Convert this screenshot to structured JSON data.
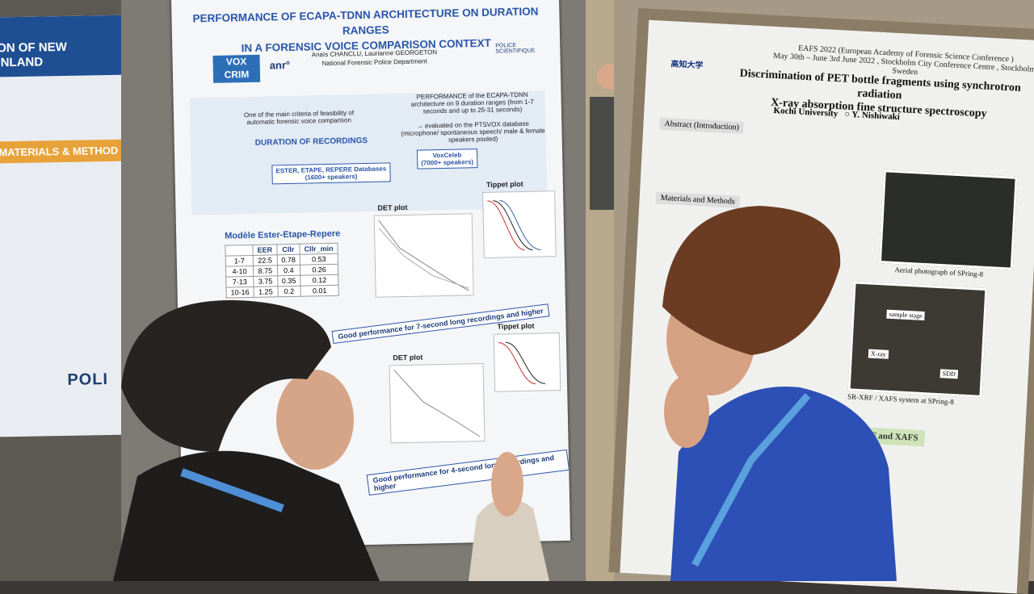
{
  "left_poster": {
    "title_lines": [
      "ON OF NEW",
      "INLAND"
    ],
    "section": "MATERIALS & METHOD",
    "logo": "POLI"
  },
  "center_poster": {
    "title_lines": [
      "PERFORMANCE OF ECAPA-TDNN ARCHITECTURE ON DURATION RANGES",
      "IN A FORENSIC VOICE COMPARISON CONTEXT"
    ],
    "logos": [
      "VOX",
      "CRIM",
      "anr°",
      "POLICE SCIENTIFIQUE"
    ],
    "authors": "Anaïs CHANCLU, Laurianne GEORGETON",
    "affiliation": "National Forensic Police Department",
    "criteria": "One of the main criteria of feasibility of automatic forensic voice comparison",
    "duration": "DURATION OF RECORDINGS",
    "ecapa_note": "PERFORMANCE of the ECAPA-TDNN architecture on 9 duration ranges (from 1-7 seconds and up to 25-31 seconds)",
    "ptsvox_note": "→ evaluated on the PTSVOX database (microphone/ spontaneous speech/ male & female speakers pooled)",
    "databases": [
      {
        "name": "ESTER, ETAPE, REPERE Databases",
        "speakers": "(1600+ speakers)"
      },
      {
        "name": "VoxCeleb",
        "speakers": "(7000+ speakers)"
      }
    ],
    "model": "Modèle Ester-Etape-Repere",
    "table": {
      "header": [
        "",
        "EER",
        "Cllr",
        "Cllr_min"
      ],
      "rows": [
        [
          "1-7",
          "22.5",
          "0.78",
          "0.53"
        ],
        [
          "4-10",
          "8.75",
          "0.4",
          "0.26"
        ],
        [
          "7-13",
          "3.75",
          "0.35",
          "0.12"
        ],
        [
          "10-16",
          "1.25",
          "0.2",
          "0.01"
        ]
      ]
    },
    "plots": [
      "DET plot",
      "Tippet plot"
    ],
    "conclusions": [
      "Good performance for 7-second long recordings and higher",
      "Good performance for 4-second long recordings and higher"
    ]
  },
  "right_poster": {
    "university_logo": "高知大学",
    "conference": "EAFS 2022 (European Academy of Forensic Science Conference )",
    "dates": "May 30th – June 3rd June 2022 , Stockholm City Conference Centre , Stockholm, Sweden",
    "title_lines": [
      "Discrimination of PET bottle fragments using synchrotron radiation",
      "X-ray absorption fine structure spectroscopy"
    ],
    "affiliation": "Kochi University",
    "author": "Y. Nishiwaki",
    "sections": [
      "Abstract (Introduction)",
      "Materials and Methods"
    ],
    "captions": [
      "Aerial photograph of SPring-8",
      "SR-XRF / XAFS system at SPring-8"
    ],
    "photo_labels": [
      "sample stage",
      "X-ray",
      "SDD"
    ],
    "highlight": "SR-XRF and XAFS"
  }
}
